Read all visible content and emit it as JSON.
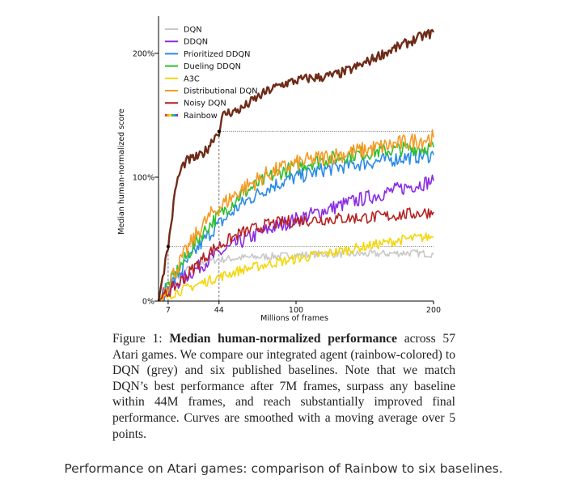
{
  "chart_data": {
    "type": "line",
    "title": "",
    "xlabel": "Millions of frames",
    "ylabel": "Median human-normalized score",
    "xlim": [
      0,
      200
    ],
    "ylim": [
      0,
      230
    ],
    "xticks": [
      {
        "value": 7,
        "label": "7"
      },
      {
        "value": 44,
        "label": "44"
      },
      {
        "value": 100,
        "label": "100"
      },
      {
        "value": 200,
        "label": "200"
      }
    ],
    "yticks": [
      {
        "value": 0,
        "label": "0%"
      },
      {
        "value": 100,
        "label": "100%"
      },
      {
        "value": 200,
        "label": "200%"
      }
    ],
    "legend_position": "top-left",
    "reference_lines": [
      {
        "kind": "vertical",
        "x": 7,
        "y_to": 44
      },
      {
        "kind": "horizontal",
        "y": 44,
        "x_from": 7,
        "x_to": 200
      },
      {
        "kind": "vertical",
        "x": 44,
        "y_to": 137
      },
      {
        "kind": "horizontal",
        "y": 137,
        "x_from": 44,
        "x_to": 200
      }
    ],
    "markers": [
      {
        "x": 7,
        "y": 44
      },
      {
        "x": 44,
        "y": 137
      }
    ],
    "series": [
      {
        "name": "DQN",
        "color": "#c8c8c8",
        "x": [
          0,
          5,
          10,
          20,
          30,
          40,
          60,
          80,
          100,
          120,
          140,
          160,
          180,
          200
        ],
        "y": [
          0,
          8,
          15,
          25,
          30,
          33,
          35,
          36,
          37,
          38,
          38,
          38,
          39,
          38
        ]
      },
      {
        "name": "DDQN",
        "color": "#8b2be2",
        "x": [
          0,
          5,
          10,
          20,
          30,
          40,
          60,
          80,
          100,
          120,
          140,
          160,
          180,
          200
        ],
        "y": [
          0,
          8,
          12,
          20,
          28,
          36,
          48,
          58,
          66,
          73,
          80,
          86,
          92,
          97
        ]
      },
      {
        "name": "Prioritized DDQN",
        "color": "#2a8be6",
        "x": [
          0,
          5,
          10,
          20,
          30,
          40,
          60,
          80,
          100,
          120,
          140,
          160,
          180,
          200
        ],
        "y": [
          0,
          8,
          15,
          30,
          45,
          58,
          78,
          92,
          100,
          106,
          110,
          113,
          116,
          118
        ]
      },
      {
        "name": "Dueling DDQN",
        "color": "#2ec02e",
        "x": [
          0,
          5,
          10,
          20,
          30,
          40,
          60,
          80,
          100,
          120,
          140,
          160,
          180,
          200
        ],
        "y": [
          0,
          10,
          18,
          35,
          52,
          65,
          86,
          100,
          109,
          114,
          118,
          121,
          123,
          124
        ]
      },
      {
        "name": "A3C",
        "color": "#f5d60a",
        "x": [
          0,
          5,
          10,
          20,
          30,
          40,
          60,
          80,
          100,
          120,
          140,
          160,
          180,
          200
        ],
        "y": [
          0,
          3,
          6,
          10,
          14,
          18,
          25,
          30,
          34,
          38,
          42,
          46,
          50,
          52
        ]
      },
      {
        "name": "Distributional DQN",
        "color": "#f59a23",
        "x": [
          0,
          5,
          10,
          20,
          30,
          40,
          60,
          80,
          100,
          120,
          140,
          160,
          180,
          200
        ],
        "y": [
          0,
          10,
          20,
          40,
          58,
          72,
          90,
          103,
          111,
          116,
          120,
          124,
          128,
          132
        ]
      },
      {
        "name": "Noisy DQN",
        "color": "#b52323",
        "x": [
          0,
          5,
          10,
          20,
          30,
          40,
          60,
          80,
          100,
          120,
          140,
          160,
          180,
          200
        ],
        "y": [
          0,
          5,
          10,
          20,
          32,
          42,
          55,
          62,
          65,
          66,
          67,
          68,
          70,
          72
        ]
      },
      {
        "name": "Rainbow",
        "color": "#6f2b18",
        "x": [
          0,
          3,
          7,
          10,
          13,
          17,
          20,
          25,
          30,
          35,
          40,
          44,
          47,
          50,
          55,
          60,
          70,
          80,
          90,
          100,
          110,
          120,
          130,
          140,
          150,
          160,
          170,
          180,
          190,
          200
        ],
        "y": [
          0,
          20,
          44,
          70,
          95,
          108,
          113,
          115,
          117,
          122,
          132,
          137,
          150,
          152,
          153,
          155,
          163,
          170,
          175,
          178,
          180,
          181,
          183,
          187,
          192,
          198,
          203,
          208,
          213,
          217
        ]
      }
    ]
  },
  "caption": {
    "label": "Figure 1:",
    "bold_title": "Median human-normalized performance",
    "body": "across 57 Atari games. We compare our integrated agent (rainbow-colored) to DQN (grey) and six published baselines. Note that we match DQN’s best performance after 7M frames, surpass any baseline within 44M frames, and reach substantially improved final performance. Curves are smoothed with a moving average over 5 points."
  },
  "subcaption": "Performance on Atari games: comparison of Rainbow to six baselines."
}
